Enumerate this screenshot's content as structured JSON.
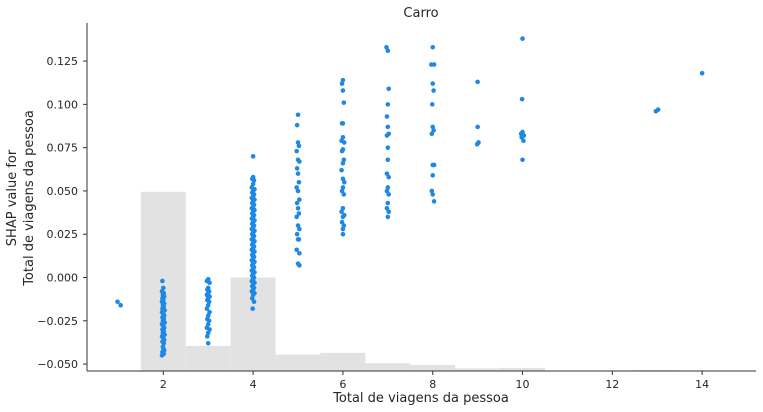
{
  "chart_data": {
    "type": "scatter",
    "title": "Carro",
    "xlabel": "Total de viagens da pessoa",
    "ylabel_lines": [
      "SHAP value for",
      "Total de viagens da pessoa"
    ],
    "xlim": [
      0.3,
      15.2
    ],
    "ylim": [
      -0.054,
      0.147
    ],
    "xticks": [
      2,
      4,
      6,
      8,
      10,
      12,
      14
    ],
    "yticks": [
      -0.05,
      -0.025,
      0.0,
      0.025,
      0.05,
      0.075,
      0.1,
      0.125
    ],
    "ytick_labels": [
      "−0.050",
      "−0.025",
      "0.000",
      "0.025",
      "0.050",
      "0.075",
      "0.100",
      "0.125"
    ],
    "grid": false,
    "point_color": "#1e88e5",
    "histogram_color": "#e2e2e2",
    "histogram": [
      {
        "x0": 1.5,
        "x1": 2.5,
        "top": 0.0495
      },
      {
        "x0": 2.5,
        "x1": 3.5,
        "top": -0.0395
      },
      {
        "x0": 3.5,
        "x1": 4.5,
        "top": 0.0
      },
      {
        "x0": 4.5,
        "x1": 5.5,
        "top": -0.0445
      },
      {
        "x0": 5.5,
        "x1": 6.5,
        "top": -0.0435
      },
      {
        "x0": 6.5,
        "x1": 7.5,
        "top": -0.0495
      },
      {
        "x0": 7.5,
        "x1": 8.5,
        "top": -0.0505
      },
      {
        "x0": 8.5,
        "x1": 9.5,
        "top": -0.0525
      },
      {
        "x0": 9.5,
        "x1": 10.5,
        "top": -0.0522
      },
      {
        "x0": 12.5,
        "x1": 13.5,
        "top": -0.0535
      }
    ],
    "points": [
      [
        0.98,
        -0.014
      ],
      [
        1.05,
        -0.016
      ],
      [
        1.98,
        -0.002
      ],
      [
        2.0,
        -0.006
      ],
      [
        1.97,
        -0.008
      ],
      [
        2.01,
        -0.009
      ],
      [
        1.99,
        -0.01
      ],
      [
        2.02,
        -0.011
      ],
      [
        1.98,
        -0.012
      ],
      [
        2.0,
        -0.013
      ],
      [
        1.97,
        -0.014
      ],
      [
        2.02,
        -0.015
      ],
      [
        1.99,
        -0.016
      ],
      [
        2.01,
        -0.017
      ],
      [
        1.98,
        -0.018
      ],
      [
        2.03,
        -0.019
      ],
      [
        1.97,
        -0.02
      ],
      [
        2.0,
        -0.021
      ],
      [
        2.02,
        -0.022
      ],
      [
        1.98,
        -0.023
      ],
      [
        2.01,
        -0.024
      ],
      [
        1.99,
        -0.025
      ],
      [
        2.03,
        -0.026
      ],
      [
        1.97,
        -0.027
      ],
      [
        2.0,
        -0.028
      ],
      [
        2.02,
        -0.029
      ],
      [
        1.98,
        -0.03
      ],
      [
        2.01,
        -0.031
      ],
      [
        1.99,
        -0.032
      ],
      [
        2.03,
        -0.033
      ],
      [
        1.97,
        -0.034
      ],
      [
        2.0,
        -0.035
      ],
      [
        2.02,
        -0.036
      ],
      [
        1.98,
        -0.037
      ],
      [
        2.01,
        -0.038
      ],
      [
        1.99,
        -0.04
      ],
      [
        2.0,
        -0.041
      ],
      [
        2.02,
        -0.042
      ],
      [
        1.98,
        -0.043
      ],
      [
        2.01,
        -0.044
      ],
      [
        1.97,
        -0.045
      ],
      [
        3.0,
        -0.001
      ],
      [
        2.97,
        -0.002
      ],
      [
        3.03,
        -0.003
      ],
      [
        3.0,
        -0.006
      ],
      [
        2.98,
        -0.007
      ],
      [
        3.02,
        -0.008
      ],
      [
        3.0,
        -0.009
      ],
      [
        2.97,
        -0.01
      ],
      [
        3.03,
        -0.011
      ],
      [
        3.0,
        -0.012
      ],
      [
        2.98,
        -0.013
      ],
      [
        3.02,
        -0.014
      ],
      [
        3.0,
        -0.016
      ],
      [
        2.97,
        -0.018
      ],
      [
        3.03,
        -0.02
      ],
      [
        3.0,
        -0.022
      ],
      [
        2.98,
        -0.024
      ],
      [
        3.02,
        -0.025
      ],
      [
        3.0,
        -0.027
      ],
      [
        2.97,
        -0.029
      ],
      [
        3.03,
        -0.03
      ],
      [
        3.0,
        -0.032
      ],
      [
        2.98,
        -0.034
      ],
      [
        3.0,
        -0.038
      ],
      [
        4.0,
        0.07
      ],
      [
        4.0,
        0.058
      ],
      [
        3.98,
        0.057
      ],
      [
        4.02,
        0.056
      ],
      [
        4.0,
        0.054
      ],
      [
        3.97,
        0.052
      ],
      [
        4.03,
        0.051
      ],
      [
        4.0,
        0.05
      ],
      [
        3.98,
        0.049
      ],
      [
        4.02,
        0.048
      ],
      [
        4.0,
        0.047
      ],
      [
        3.97,
        0.046
      ],
      [
        4.03,
        0.045
      ],
      [
        4.0,
        0.044
      ],
      [
        3.98,
        0.043
      ],
      [
        4.02,
        0.042
      ],
      [
        4.0,
        0.041
      ],
      [
        3.97,
        0.04
      ],
      [
        4.03,
        0.039
      ],
      [
        4.0,
        0.038
      ],
      [
        3.98,
        0.037
      ],
      [
        4.02,
        0.036
      ],
      [
        4.0,
        0.035
      ],
      [
        3.97,
        0.034
      ],
      [
        4.03,
        0.033
      ],
      [
        4.0,
        0.032
      ],
      [
        3.98,
        0.031
      ],
      [
        4.02,
        0.03
      ],
      [
        4.0,
        0.029
      ],
      [
        3.97,
        0.028
      ],
      [
        4.03,
        0.027
      ],
      [
        4.0,
        0.026
      ],
      [
        3.98,
        0.025
      ],
      [
        4.02,
        0.024
      ],
      [
        4.0,
        0.023
      ],
      [
        3.97,
        0.022
      ],
      [
        4.03,
        0.021
      ],
      [
        4.0,
        0.02
      ],
      [
        3.98,
        0.019
      ],
      [
        4.02,
        0.018
      ],
      [
        4.0,
        0.017
      ],
      [
        3.97,
        0.016
      ],
      [
        4.03,
        0.015
      ],
      [
        4.0,
        0.014
      ],
      [
        3.98,
        0.013
      ],
      [
        4.02,
        0.012
      ],
      [
        4.0,
        0.011
      ],
      [
        3.97,
        0.01
      ],
      [
        4.03,
        0.009
      ],
      [
        4.0,
        0.008
      ],
      [
        3.98,
        0.007
      ],
      [
        4.02,
        0.006
      ],
      [
        4.0,
        0.005
      ],
      [
        3.97,
        0.004
      ],
      [
        4.03,
        0.003
      ],
      [
        4.0,
        0.002
      ],
      [
        3.98,
        0.001
      ],
      [
        4.02,
        0.0
      ],
      [
        4.0,
        -0.001
      ],
      [
        3.97,
        -0.002
      ],
      [
        4.03,
        -0.003
      ],
      [
        4.0,
        -0.004
      ],
      [
        3.98,
        -0.005
      ],
      [
        4.02,
        -0.006
      ],
      [
        4.0,
        -0.007
      ],
      [
        3.97,
        -0.008
      ],
      [
        4.03,
        -0.009
      ],
      [
        4.0,
        -0.01
      ],
      [
        3.98,
        -0.012
      ],
      [
        4.02,
        -0.014
      ],
      [
        3.99,
        -0.018
      ],
      [
        5.0,
        0.094
      ],
      [
        4.98,
        0.088
      ],
      [
        5.0,
        0.078
      ],
      [
        5.02,
        0.076
      ],
      [
        4.97,
        0.073
      ],
      [
        5.0,
        0.068
      ],
      [
        5.03,
        0.067
      ],
      [
        4.98,
        0.063
      ],
      [
        5.0,
        0.06
      ],
      [
        5.02,
        0.055
      ],
      [
        4.97,
        0.052
      ],
      [
        5.0,
        0.05
      ],
      [
        5.03,
        0.045
      ],
      [
        4.98,
        0.043
      ],
      [
        5.0,
        0.04
      ],
      [
        5.02,
        0.037
      ],
      [
        4.97,
        0.035
      ],
      [
        5.0,
        0.03
      ],
      [
        5.03,
        0.028
      ],
      [
        4.98,
        0.025
      ],
      [
        5.0,
        0.022
      ],
      [
        5.02,
        0.022
      ],
      [
        4.97,
        0.016
      ],
      [
        5.03,
        0.014
      ],
      [
        5.0,
        0.008
      ],
      [
        5.03,
        0.007
      ],
      [
        6.0,
        0.114
      ],
      [
        5.98,
        0.112
      ],
      [
        6.0,
        0.108
      ],
      [
        6.02,
        0.101
      ],
      [
        6.0,
        0.089
      ],
      [
        5.98,
        0.089
      ],
      [
        6.0,
        0.081
      ],
      [
        5.97,
        0.079
      ],
      [
        6.03,
        0.078
      ],
      [
        6.0,
        0.074
      ],
      [
        5.98,
        0.073
      ],
      [
        6.02,
        0.068
      ],
      [
        6.0,
        0.066
      ],
      [
        5.97,
        0.062
      ],
      [
        6.0,
        0.057
      ],
      [
        6.03,
        0.055
      ],
      [
        6.0,
        0.052
      ],
      [
        5.98,
        0.05
      ],
      [
        6.02,
        0.048
      ],
      [
        6.0,
        0.04
      ],
      [
        5.97,
        0.038
      ],
      [
        6.03,
        0.036
      ],
      [
        6.0,
        0.035
      ],
      [
        5.98,
        0.032
      ],
      [
        6.02,
        0.03
      ],
      [
        6.0,
        0.028
      ],
      [
        6.0,
        0.025
      ],
      [
        6.97,
        0.133
      ],
      [
        7.0,
        0.131
      ],
      [
        7.02,
        0.109
      ],
      [
        7.0,
        0.1
      ],
      [
        6.98,
        0.093
      ],
      [
        7.0,
        0.087
      ],
      [
        7.02,
        0.083
      ],
      [
        6.98,
        0.082
      ],
      [
        7.0,
        0.075
      ],
      [
        7.0,
        0.068
      ],
      [
        6.98,
        0.06
      ],
      [
        7.02,
        0.058
      ],
      [
        7.0,
        0.052
      ],
      [
        6.98,
        0.05
      ],
      [
        7.02,
        0.048
      ],
      [
        7.0,
        0.043
      ],
      [
        6.98,
        0.04
      ],
      [
        7.02,
        0.038
      ],
      [
        7.0,
        0.035
      ],
      [
        8.0,
        0.133
      ],
      [
        7.97,
        0.123
      ],
      [
        8.03,
        0.123
      ],
      [
        8.0,
        0.112
      ],
      [
        8.02,
        0.108
      ],
      [
        7.99,
        0.1
      ],
      [
        8.0,
        0.087
      ],
      [
        8.02,
        0.085
      ],
      [
        7.98,
        0.083
      ],
      [
        8.0,
        0.065
      ],
      [
        8.03,
        0.065
      ],
      [
        8.0,
        0.059
      ],
      [
        7.98,
        0.05
      ],
      [
        8.0,
        0.048
      ],
      [
        8.03,
        0.044
      ],
      [
        9.0,
        0.113
      ],
      [
        9.0,
        0.087
      ],
      [
        9.02,
        0.078
      ],
      [
        8.99,
        0.077
      ],
      [
        10.0,
        0.138
      ],
      [
        9.99,
        0.103
      ],
      [
        10.0,
        0.084
      ],
      [
        9.97,
        0.083
      ],
      [
        10.03,
        0.082
      ],
      [
        9.98,
        0.081
      ],
      [
        10.02,
        0.079
      ],
      [
        10.0,
        0.068
      ],
      [
        12.97,
        0.096
      ],
      [
        13.02,
        0.097
      ],
      [
        14.0,
        0.118
      ]
    ]
  }
}
